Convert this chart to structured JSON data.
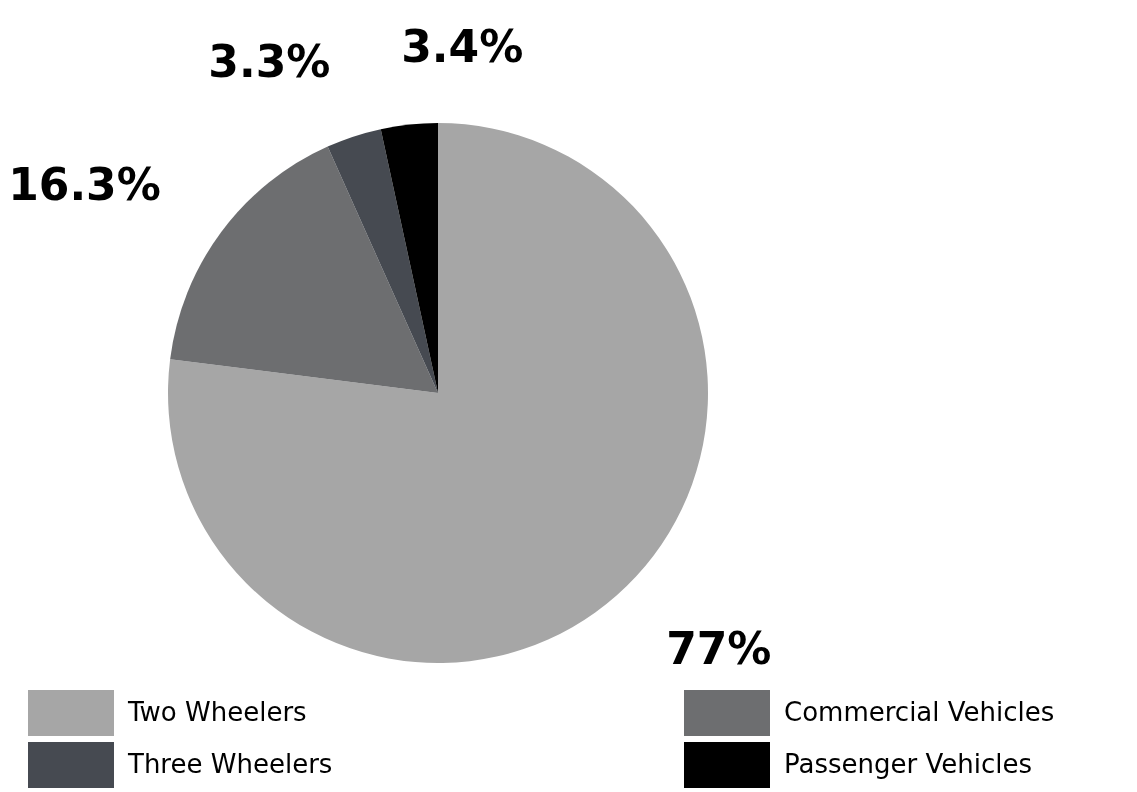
{
  "chart_data": {
    "type": "pie",
    "categories": [
      "Two Wheelers",
      "Commercial Vehicles",
      "Three Wheelers",
      "Passenger Vehicles"
    ],
    "values": [
      77,
      16.3,
      3.3,
      3.4
    ],
    "colors": [
      "#a6a6a6",
      "#6d6e70",
      "#464a51",
      "#000000"
    ],
    "value_labels": [
      "77%",
      "16.3%",
      "3.3%",
      "3.4%"
    ],
    "legend": "bottom"
  }
}
